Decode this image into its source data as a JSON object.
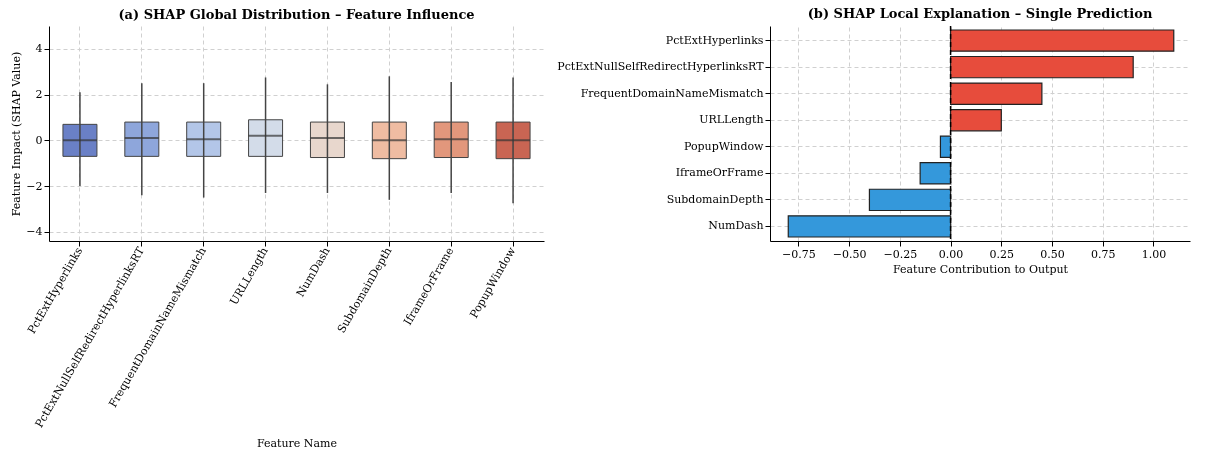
{
  "chart_data": [
    {
      "type": "box",
      "title": "(a) SHAP Global Distribution – Feature Influence",
      "xlabel": "Feature Name",
      "ylabel": "Feature Impact (SHAP Value)",
      "categories": [
        "PctExtHyperlinks",
        "PctExtNullSelfRedirectHyperlinksRT",
        "FrequentDomainNameMismatch",
        "URLLength",
        "NumDash",
        "SubdomainDepth",
        "IframeOrFrame",
        "PopupWindow"
      ],
      "boxes": [
        {
          "low": -2.0,
          "q1": -0.7,
          "median": 0.0,
          "q3": 0.7,
          "high": 2.1
        },
        {
          "low": -2.4,
          "q1": -0.7,
          "median": 0.1,
          "q3": 0.8,
          "high": 2.5
        },
        {
          "low": -2.5,
          "q1": -0.7,
          "median": 0.05,
          "q3": 0.8,
          "high": 2.5
        },
        {
          "low": -2.3,
          "q1": -0.7,
          "median": 0.2,
          "q3": 0.9,
          "high": 2.75
        },
        {
          "low": -2.3,
          "q1": -0.75,
          "median": 0.1,
          "q3": 0.8,
          "high": 2.45
        },
        {
          "low": -2.6,
          "q1": -0.8,
          "median": 0.0,
          "q3": 0.8,
          "high": 2.8
        },
        {
          "low": -2.3,
          "q1": -0.75,
          "median": 0.05,
          "q3": 0.8,
          "high": 2.55
        },
        {
          "low": -2.75,
          "q1": -0.8,
          "median": 0.0,
          "q3": 0.8,
          "high": 2.75
        }
      ],
      "colors": [
        "#6a80c6",
        "#8ea6db",
        "#b3c6e8",
        "#d3dce9",
        "#e8d7cd",
        "#efbca2",
        "#e2977c",
        "#c96553"
      ],
      "ylim": [
        -4.4,
        5.0
      ],
      "yticks": [
        -4,
        -2,
        0,
        2,
        4
      ],
      "grid": true
    },
    {
      "type": "bar",
      "orientation": "horizontal",
      "title": "(b) SHAP Local Explanation – Single Prediction",
      "xlabel": "Feature Contribution to Output",
      "categories": [
        "PctExtHyperlinks",
        "PctExtNullSelfRedirectHyperlinksRT",
        "FrequentDomainNameMismatch",
        "URLLength",
        "PopupWindow",
        "IframeOrFrame",
        "SubdomainDepth",
        "NumDash"
      ],
      "values": [
        1.1,
        0.9,
        0.45,
        0.25,
        -0.05,
        -0.15,
        -0.4,
        -0.8
      ],
      "colors": [
        "#e74c3c",
        "#e74c3c",
        "#e74c3c",
        "#e74c3c",
        "#3498db",
        "#3498db",
        "#3498db",
        "#3498db"
      ],
      "xlim": [
        -0.89,
        1.18
      ],
      "xticks": [
        {
          "value": -0.75,
          "label": "−0.75"
        },
        {
          "value": -0.5,
          "label": "−0.50"
        },
        {
          "value": -0.25,
          "label": "−0.25"
        },
        {
          "value": 0,
          "label": "0.00"
        },
        {
          "value": 0.25,
          "label": "0.25"
        },
        {
          "value": 0.5,
          "label": "0.50"
        },
        {
          "value": 0.75,
          "label": "0.75"
        },
        {
          "value": 1.0,
          "label": "1.00"
        }
      ],
      "ref_lines": [
        {
          "axis": "x",
          "value": 0,
          "color": "#000000",
          "line_style": "dashed"
        }
      ],
      "grid": true
    }
  ]
}
